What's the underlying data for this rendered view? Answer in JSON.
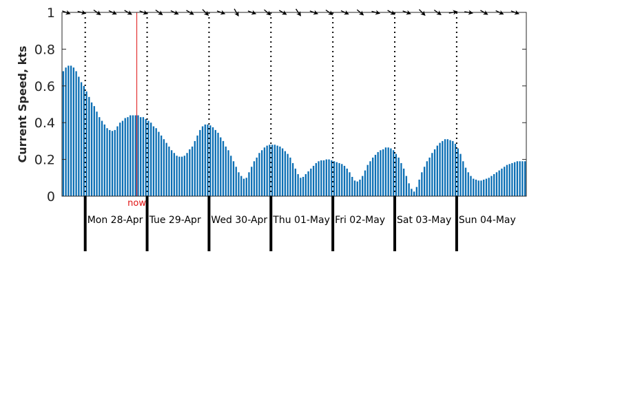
{
  "chart_data": {
    "type": "bar",
    "ylabel": "Current Speed, kts",
    "ylim": [
      0,
      1
    ],
    "y_ticks": [
      "0",
      "0.2",
      "0.4",
      "0.6",
      "0.8",
      "1"
    ],
    "y_tick_values": [
      0,
      0.2,
      0.4,
      0.6,
      0.8,
      1
    ],
    "grid": false,
    "days": [
      "Mon 28-Apr",
      "Tue 29-Apr",
      "Wed 30-Apr",
      "Thu 01-May",
      "Fri 02-May",
      "Sat 03-May",
      "Sun 04-May"
    ],
    "hours_total": 180,
    "first_midnight_hour": 9,
    "now_hour": 29,
    "now_label": "now",
    "bar_color": "#0a6eb4",
    "now_color": "#e01010",
    "interval_hours": 1,
    "values": [
      0.68,
      0.7,
      0.71,
      0.71,
      0.7,
      0.68,
      0.65,
      0.62,
      0.6,
      0.57,
      0.54,
      0.51,
      0.49,
      0.46,
      0.43,
      0.41,
      0.39,
      0.37,
      0.36,
      0.355,
      0.36,
      0.38,
      0.4,
      0.41,
      0.425,
      0.43,
      0.44,
      0.44,
      0.44,
      0.44,
      0.43,
      0.43,
      0.42,
      0.41,
      0.4,
      0.38,
      0.37,
      0.35,
      0.33,
      0.31,
      0.29,
      0.27,
      0.25,
      0.235,
      0.22,
      0.215,
      0.215,
      0.22,
      0.235,
      0.255,
      0.27,
      0.3,
      0.33,
      0.36,
      0.38,
      0.39,
      0.39,
      0.385,
      0.375,
      0.36,
      0.345,
      0.32,
      0.3,
      0.27,
      0.25,
      0.22,
      0.19,
      0.16,
      0.13,
      0.11,
      0.095,
      0.1,
      0.13,
      0.16,
      0.19,
      0.21,
      0.235,
      0.25,
      0.265,
      0.275,
      0.28,
      0.28,
      0.28,
      0.275,
      0.27,
      0.26,
      0.245,
      0.23,
      0.21,
      0.18,
      0.15,
      0.12,
      0.1,
      0.105,
      0.12,
      0.135,
      0.15,
      0.165,
      0.18,
      0.19,
      0.195,
      0.195,
      0.2,
      0.2,
      0.195,
      0.19,
      0.185,
      0.18,
      0.175,
      0.165,
      0.15,
      0.13,
      0.105,
      0.085,
      0.08,
      0.09,
      0.11,
      0.14,
      0.17,
      0.19,
      0.21,
      0.225,
      0.24,
      0.25,
      0.255,
      0.265,
      0.265,
      0.26,
      0.25,
      0.23,
      0.21,
      0.18,
      0.15,
      0.11,
      0.07,
      0.04,
      0.025,
      0.05,
      0.09,
      0.13,
      0.16,
      0.19,
      0.21,
      0.235,
      0.255,
      0.275,
      0.29,
      0.3,
      0.31,
      0.31,
      0.305,
      0.3,
      0.285,
      0.26,
      0.23,
      0.19,
      0.155,
      0.13,
      0.11,
      0.095,
      0.09,
      0.085,
      0.085,
      0.09,
      0.095,
      0.1,
      0.11,
      0.12,
      0.13,
      0.14,
      0.15,
      0.16,
      0.17,
      0.175,
      0.18,
      0.185,
      0.19,
      0.19,
      0.19,
      0.19
    ],
    "direction_arrows": [
      {
        "hour": 0,
        "angle": 20
      },
      {
        "hour": 6,
        "angle": 15
      },
      {
        "hour": 12,
        "angle": 35
      },
      {
        "hour": 18,
        "angle": 25
      },
      {
        "hour": 24,
        "angle": 30
      },
      {
        "hour": 30,
        "angle": 20
      },
      {
        "hour": 36,
        "angle": 35
      },
      {
        "hour": 42,
        "angle": 25
      },
      {
        "hour": 48,
        "angle": 30
      },
      {
        "hour": 54,
        "angle": 45
      },
      {
        "hour": 60,
        "angle": 20
      },
      {
        "hour": 66,
        "angle": 60
      },
      {
        "hour": 72,
        "angle": 20
      },
      {
        "hour": 78,
        "angle": 40
      },
      {
        "hour": 84,
        "angle": 30
      },
      {
        "hour": 90,
        "angle": 55
      },
      {
        "hour": 96,
        "angle": 20
      },
      {
        "hour": 102,
        "angle": 35
      },
      {
        "hour": 108,
        "angle": 25
      },
      {
        "hour": 114,
        "angle": 40
      },
      {
        "hour": 120,
        "angle": 15
      },
      {
        "hour": 126,
        "angle": 30
      },
      {
        "hour": 132,
        "angle": 20
      },
      {
        "hour": 138,
        "angle": 45
      },
      {
        "hour": 144,
        "angle": 35
      },
      {
        "hour": 150,
        "angle": -10
      },
      {
        "hour": 156,
        "angle": 10
      },
      {
        "hour": 162,
        "angle": 30
      },
      {
        "hour": 168,
        "angle": 25
      },
      {
        "hour": 174,
        "angle": 20
      }
    ]
  }
}
